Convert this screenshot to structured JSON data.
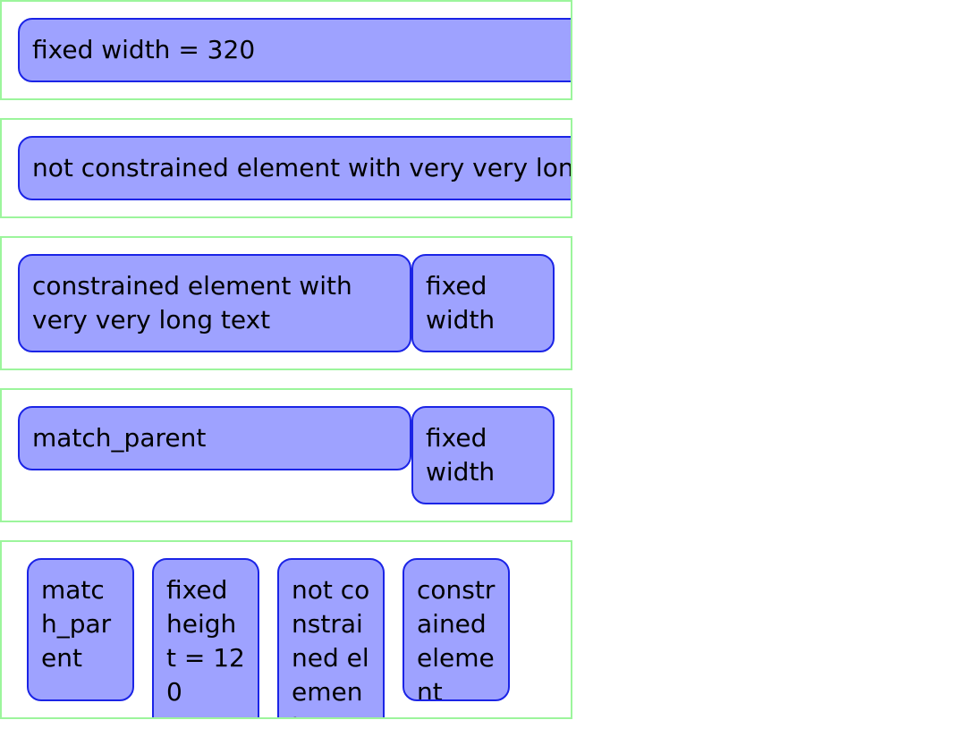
{
  "rows": {
    "row1": {
      "label": "fixed width = 320"
    },
    "row2": {
      "label": "not constrained element with very very long text"
    },
    "row3": {
      "constrained_label": "constrained element with very very long text",
      "fixed_label": "fixed width"
    },
    "row4": {
      "match_label": "match_parent",
      "fixed_label": "fixed width"
    },
    "row5": {
      "match_label": "match_parent",
      "fixed_height_label": "fixed height = 120",
      "not_constrained_label": "not constrained element",
      "constrained_label": "constrained element"
    }
  },
  "colors": {
    "box_fill": "#9ea2ff",
    "box_border": "#1b24e6",
    "row_border": "#9cf59c"
  }
}
